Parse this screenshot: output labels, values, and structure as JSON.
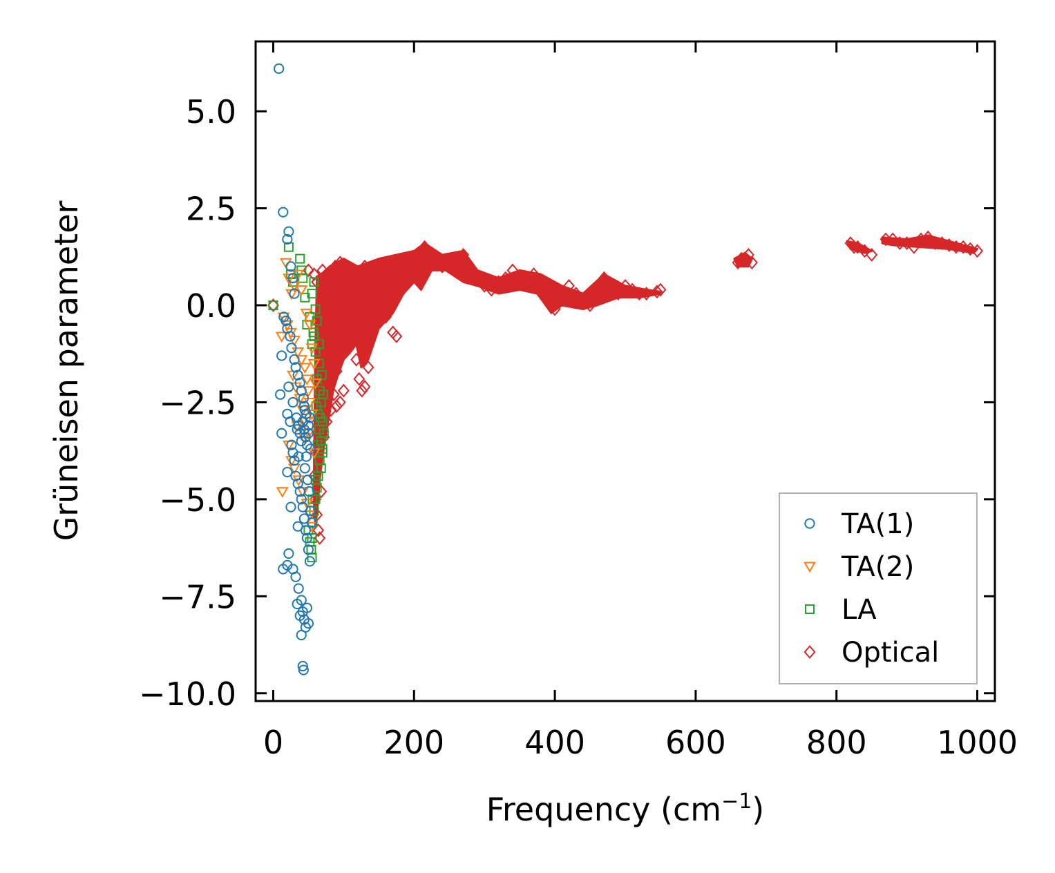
{
  "chart_data": {
    "type": "scatter",
    "xlabel": "Frequency (cm",
    "xlabel_superscript": "−1",
    "xlabel_suffix": ")",
    "ylabel": "Grüneisen parameter",
    "xlim": [
      -25,
      1025
    ],
    "ylim": [
      -10.2,
      6.8
    ],
    "xticks": [
      0,
      200,
      400,
      600,
      800,
      1000
    ],
    "xtick_labels": [
      "0",
      "200",
      "400",
      "600",
      "800",
      "1000"
    ],
    "yticks": [
      5.0,
      2.5,
      0.0,
      -2.5,
      -5.0,
      -7.5,
      -10.0
    ],
    "ytick_labels": [
      "5.0",
      "2.5",
      "0.0",
      "−2.5",
      "−5.0",
      "−7.5",
      "−10.0"
    ],
    "legend_position": "lower-right",
    "series": [
      {
        "name": "TA(1)",
        "marker": "circle",
        "color": "#1f77b4",
        "points": [
          [
            8,
            6.1
          ],
          [
            14,
            2.4
          ],
          [
            20,
            1.7
          ],
          [
            22,
            1.9
          ],
          [
            25,
            1.0
          ],
          [
            28,
            0.7
          ],
          [
            30,
            0.3
          ],
          [
            12,
            -1.3
          ],
          [
            15,
            -0.3
          ],
          [
            18,
            -0.4
          ],
          [
            20,
            -0.6
          ],
          [
            24,
            -0.8
          ],
          [
            26,
            -1.1
          ],
          [
            30,
            -1.4
          ],
          [
            32,
            -1.6
          ],
          [
            35,
            -1.8
          ],
          [
            38,
            -2.0
          ],
          [
            40,
            -2.2
          ],
          [
            43,
            -2.4
          ],
          [
            45,
            -2.7
          ],
          [
            10,
            -2.3
          ],
          [
            22,
            -2.1
          ],
          [
            28,
            -2.5
          ],
          [
            33,
            -2.9
          ],
          [
            36,
            -3.1
          ],
          [
            38,
            -3.3
          ],
          [
            40,
            -3.5
          ],
          [
            42,
            -3.0
          ],
          [
            44,
            -3.2
          ],
          [
            46,
            -3.4
          ],
          [
            48,
            -3.6
          ],
          [
            50,
            -3.1
          ],
          [
            52,
            -2.9
          ],
          [
            12,
            -3.3
          ],
          [
            20,
            -2.8
          ],
          [
            24,
            -3.0
          ],
          [
            26,
            -3.6
          ],
          [
            28,
            -3.8
          ],
          [
            30,
            -4.0
          ],
          [
            20,
            -4.3
          ],
          [
            32,
            -4.4
          ],
          [
            35,
            -4.6
          ],
          [
            38,
            -4.8
          ],
          [
            40,
            -5.0
          ],
          [
            42,
            -5.2
          ],
          [
            44,
            -5.5
          ],
          [
            46,
            -5.8
          ],
          [
            48,
            -6.0
          ],
          [
            50,
            -6.3
          ],
          [
            25,
            -5.2
          ],
          [
            35,
            -5.7
          ],
          [
            22,
            -6.4
          ],
          [
            14,
            -6.8
          ],
          [
            20,
            -6.7
          ],
          [
            28,
            -6.8
          ],
          [
            32,
            -7.0
          ],
          [
            36,
            -7.3
          ],
          [
            40,
            -7.6
          ],
          [
            42,
            -7.9
          ],
          [
            44,
            -8.1
          ],
          [
            46,
            -8.3
          ],
          [
            38,
            -8.0
          ],
          [
            34,
            -7.7
          ],
          [
            40,
            -8.5
          ],
          [
            42,
            -9.3
          ],
          [
            43,
            -9.4
          ],
          [
            48,
            -7.8
          ],
          [
            50,
            -8.2
          ],
          [
            52,
            -6.6
          ],
          [
            45,
            -4.2
          ],
          [
            47,
            -3.9
          ],
          [
            49,
            -4.5
          ],
          [
            51,
            -4.8
          ],
          [
            53,
            -5.3
          ],
          [
            55,
            -5.6
          ],
          [
            36,
            -3.9
          ],
          [
            34,
            -3.2
          ],
          [
            44,
            -2.6
          ],
          [
            47,
            -2.8
          ],
          [
            50,
            -3.3
          ],
          [
            53,
            -3.7
          ]
        ]
      },
      {
        "name": "TA(2)",
        "marker": "triangle-down",
        "color": "#ff7f0e",
        "points": [
          [
            18,
            1.1
          ],
          [
            22,
            0.7
          ],
          [
            26,
            0.3
          ],
          [
            30,
            0.5
          ],
          [
            35,
            0.8
          ],
          [
            40,
            0.4
          ],
          [
            15,
            -0.3
          ],
          [
            20,
            -0.5
          ],
          [
            25,
            -0.7
          ],
          [
            30,
            -0.9
          ],
          [
            35,
            -1.2
          ],
          [
            40,
            -1.4
          ],
          [
            12,
            -0.8
          ],
          [
            45,
            -1.6
          ],
          [
            48,
            -1.9
          ],
          [
            50,
            -2.2
          ],
          [
            52,
            -2.5
          ],
          [
            55,
            -2.8
          ],
          [
            28,
            -1.8
          ],
          [
            32,
            -2.1
          ],
          [
            38,
            -2.4
          ],
          [
            42,
            -2.7
          ],
          [
            46,
            -3.0
          ],
          [
            50,
            -3.3
          ],
          [
            22,
            -3.6
          ],
          [
            26,
            -4.0
          ],
          [
            30,
            -4.2
          ],
          [
            36,
            -4.5
          ],
          [
            42,
            -4.8
          ],
          [
            48,
            -5.1
          ],
          [
            13,
            -4.8
          ],
          [
            52,
            -5.4
          ],
          [
            55,
            -5.7
          ],
          [
            34,
            -3.1
          ],
          [
            44,
            -3.4
          ],
          [
            58,
            -3.8
          ],
          [
            47,
            -0.2
          ],
          [
            52,
            -0.5
          ],
          [
            55,
            -1.1
          ],
          [
            58,
            -1.5
          ],
          [
            60,
            -2.0
          ]
        ]
      },
      {
        "name": "LA",
        "marker": "square",
        "color": "#2ca02c",
        "points": [
          [
            0,
            0.0
          ],
          [
            22,
            1.5
          ],
          [
            25,
            0.8
          ],
          [
            28,
            0.6
          ],
          [
            38,
            1.2
          ],
          [
            40,
            0.9
          ],
          [
            42,
            0.7
          ],
          [
            45,
            0.2
          ],
          [
            55,
            0.3
          ],
          [
            58,
            0.6
          ],
          [
            60,
            -0.1
          ],
          [
            62,
            -0.4
          ],
          [
            58,
            -0.8
          ],
          [
            55,
            -1.0
          ],
          [
            60,
            -1.2
          ],
          [
            65,
            -1.5
          ],
          [
            62,
            -1.9
          ],
          [
            66,
            -2.2
          ],
          [
            68,
            -2.5
          ],
          [
            64,
            -2.8
          ],
          [
            70,
            -3.0
          ],
          [
            72,
            -3.3
          ],
          [
            68,
            -3.5
          ],
          [
            70,
            -3.8
          ],
          [
            66,
            -4.0
          ],
          [
            68,
            -4.2
          ],
          [
            64,
            -4.4
          ],
          [
            62,
            -4.7
          ],
          [
            60,
            -5.0
          ],
          [
            58,
            -5.3
          ],
          [
            56,
            -5.6
          ],
          [
            55,
            -6.0
          ],
          [
            54,
            -6.3
          ],
          [
            55,
            -6.5
          ],
          [
            52,
            -6.1
          ],
          [
            50,
            -5.8
          ],
          [
            56,
            -5.0
          ],
          [
            60,
            -4.5
          ],
          [
            63,
            -3.6
          ],
          [
            67,
            -2.9
          ],
          [
            71,
            -2.3
          ],
          [
            69,
            -1.8
          ],
          [
            65,
            -1.0
          ],
          [
            48,
            -0.5
          ],
          [
            52,
            -0.3
          ],
          [
            57,
            -0.7
          ],
          [
            61,
            -2.6
          ],
          [
            65,
            -3.2
          ],
          [
            70,
            -3.7
          ]
        ]
      },
      {
        "name": "Optical",
        "marker": "diamond",
        "color": "#d62728",
        "fill_color": "#d62728",
        "points": [
          [
            0,
            0.0
          ],
          [
            50,
            0.9
          ],
          [
            58,
            0.8
          ],
          [
            62,
            0.6
          ],
          [
            70,
            0.9
          ],
          [
            78,
            0.7
          ],
          [
            88,
            1.0
          ],
          [
            95,
            1.1
          ],
          [
            105,
            1.0
          ],
          [
            110,
            0.8
          ],
          [
            130,
            1.0
          ],
          [
            140,
            0.9
          ],
          [
            62,
            -0.4
          ],
          [
            66,
            -1.0
          ],
          [
            70,
            -1.6
          ],
          [
            74,
            -2.0
          ],
          [
            78,
            -2.4
          ],
          [
            82,
            -2.7
          ],
          [
            86,
            -2.3
          ],
          [
            90,
            -1.7
          ],
          [
            95,
            -1.2
          ],
          [
            100,
            -0.6
          ],
          [
            108,
            -0.2
          ],
          [
            112,
            -0.9
          ],
          [
            118,
            -1.4
          ],
          [
            122,
            -1.9
          ],
          [
            126,
            -2.2
          ],
          [
            130,
            -2.1
          ],
          [
            135,
            -1.6
          ],
          [
            100,
            -2.2
          ],
          [
            95,
            -2.5
          ],
          [
            90,
            -2.6
          ],
          [
            60,
            -5.0
          ],
          [
            62,
            -5.4
          ],
          [
            64,
            -5.8
          ],
          [
            66,
            -6.0
          ],
          [
            58,
            -4.4
          ],
          [
            68,
            -4.8
          ],
          [
            72,
            -3.4
          ],
          [
            76,
            -3.0
          ],
          [
            60,
            -3.8
          ],
          [
            170,
            -0.7
          ],
          [
            175,
            -0.8
          ],
          [
            160,
            -0.3
          ],
          [
            180,
            0.4
          ],
          [
            190,
            0.8
          ],
          [
            200,
            1.1
          ],
          [
            210,
            1.3
          ],
          [
            215,
            1.5
          ],
          [
            220,
            1.4
          ],
          [
            230,
            1.2
          ],
          [
            240,
            1.0
          ],
          [
            250,
            1.0
          ],
          [
            260,
            1.1
          ],
          [
            265,
            0.8
          ],
          [
            270,
            1.3
          ],
          [
            280,
            0.9
          ],
          [
            290,
            0.7
          ],
          [
            300,
            0.5
          ],
          [
            310,
            0.4
          ],
          [
            320,
            0.6
          ],
          [
            330,
            0.7
          ],
          [
            340,
            0.9
          ],
          [
            350,
            0.7
          ],
          [
            360,
            0.6
          ],
          [
            370,
            0.8
          ],
          [
            380,
            0.6
          ],
          [
            390,
            0.4
          ],
          [
            395,
            0.1
          ],
          [
            400,
            -0.1
          ],
          [
            410,
            0.2
          ],
          [
            420,
            0.5
          ],
          [
            430,
            0.3
          ],
          [
            440,
            0.1
          ],
          [
            450,
            0.0
          ],
          [
            460,
            0.4
          ],
          [
            470,
            0.7
          ],
          [
            480,
            0.5
          ],
          [
            490,
            0.3
          ],
          [
            500,
            0.5
          ],
          [
            510,
            0.4
          ],
          [
            520,
            0.3
          ],
          [
            530,
            0.3
          ],
          [
            545,
            0.35
          ],
          [
            550,
            0.4
          ],
          [
            660,
            1.1
          ],
          [
            665,
            1.2
          ],
          [
            670,
            1.2
          ],
          [
            675,
            1.3
          ],
          [
            680,
            1.1
          ],
          [
            820,
            1.6
          ],
          [
            825,
            1.5
          ],
          [
            830,
            1.5
          ],
          [
            840,
            1.4
          ],
          [
            850,
            1.3
          ],
          [
            870,
            1.7
          ],
          [
            880,
            1.7
          ],
          [
            890,
            1.6
          ],
          [
            900,
            1.6
          ],
          [
            910,
            1.5
          ],
          [
            920,
            1.7
          ],
          [
            930,
            1.75
          ],
          [
            940,
            1.6
          ],
          [
            950,
            1.6
          ],
          [
            960,
            1.55
          ],
          [
            970,
            1.5
          ],
          [
            980,
            1.5
          ],
          [
            990,
            1.45
          ],
          [
            1000,
            1.4
          ]
        ]
      }
    ]
  }
}
